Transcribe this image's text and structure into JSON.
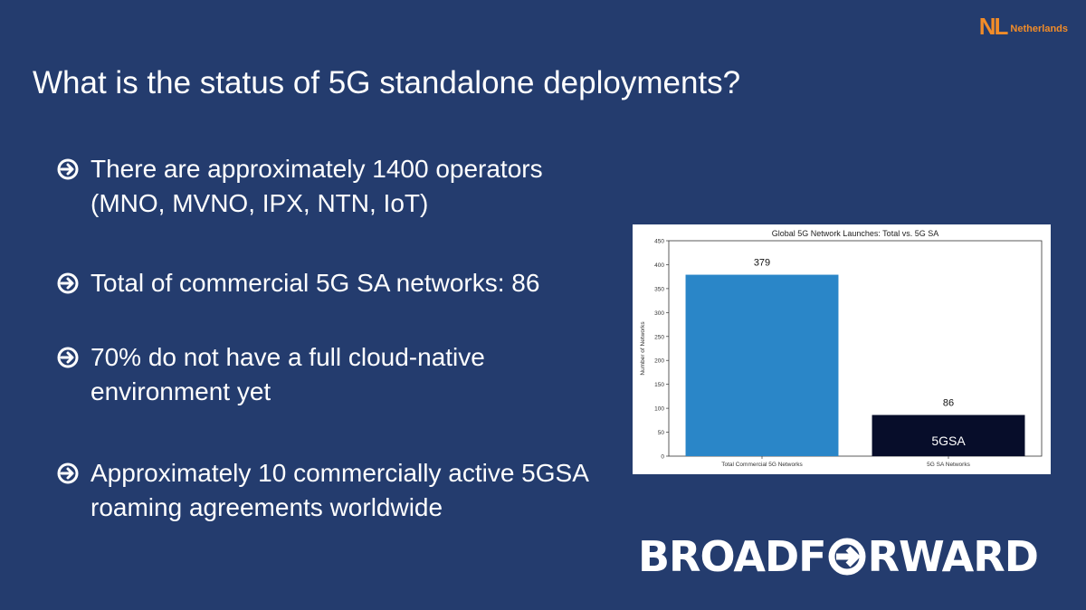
{
  "logo": {
    "mark": "NL",
    "country": "Netherlands"
  },
  "title": "What is the status of 5G standalone deployments?",
  "bullets": [
    {
      "text": "There are approximately 1400 operators\n(MNO, MVNO, IPX, NTN, IoT)"
    },
    {
      "text": "Total of commercial 5G SA networks: 86"
    },
    {
      "text": "70% do not have a full cloud-native\nenvironment yet"
    },
    {
      "text": "Approximately 10 commercially active 5GSA\nroaming agreements worldwide"
    }
  ],
  "brand": {
    "left": "BROAD",
    "f": "F",
    "right": "RWARD"
  },
  "chart_data": {
    "type": "bar",
    "title": "Global 5G Network Launches: Total vs. 5G SA",
    "ylabel": "Number of Networks",
    "xlabel": "",
    "categories": [
      "Total Commercial 5G Networks",
      "5G SA Networks"
    ],
    "values": [
      379,
      86
    ],
    "data_labels": [
      "379",
      "86"
    ],
    "bar_colors": [
      "#2a86c8",
      "#070d2a"
    ],
    "bar_annotations": [
      "",
      "5GSA"
    ],
    "ylim": [
      0,
      450
    ],
    "yticks": [
      0,
      50,
      100,
      150,
      200,
      250,
      300,
      350,
      400,
      450
    ],
    "grid": false,
    "legend": "none"
  },
  "colors": {
    "background": "#243c6e",
    "accent": "#f28c28"
  }
}
